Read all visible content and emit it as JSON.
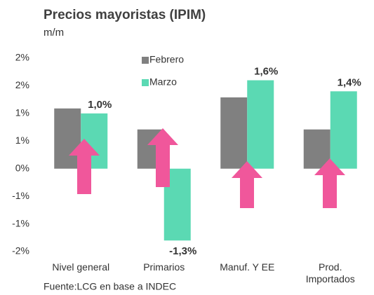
{
  "chart_data": {
    "type": "bar",
    "title": "Precios mayoristas (IPIM)",
    "subtitle": "m/m",
    "source": "Fuente:LCG en base a INDEC",
    "categories": [
      "Nivel general",
      "Primarios",
      "Manuf. Y EE",
      "Prod.\nImportados"
    ],
    "series": [
      {
        "name": "Febrero",
        "color": "#808080",
        "values": [
          1.09,
          0.71,
          1.29,
          0.71
        ]
      },
      {
        "name": "Marzo",
        "color": "#5bd9b3",
        "values": [
          1.0,
          -1.3,
          1.6,
          1.4
        ],
        "value_labels": [
          "1,0%",
          "-1,3%",
          "1,6%",
          "1,4%"
        ]
      }
    ],
    "ylim": [
      -1.5,
      2
    ],
    "yticks": [
      {
        "value": -1.5,
        "label": "-2%"
      },
      {
        "value": -1,
        "label": "-1%"
      },
      {
        "value": -0.5,
        "label": "-1%"
      },
      {
        "value": 0,
        "label": "0%"
      },
      {
        "value": 0.5,
        "label": "1%"
      },
      {
        "value": 1,
        "label": "1%"
      },
      {
        "value": 1.5,
        "label": "2%"
      },
      {
        "value": 2,
        "label": "2%"
      }
    ],
    "grid": false
  }
}
